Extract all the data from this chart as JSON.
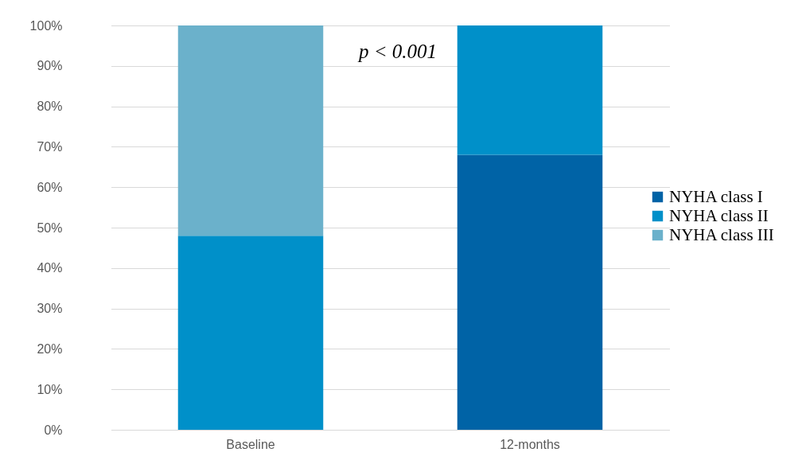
{
  "chart_data": {
    "type": "bar",
    "stacked": true,
    "categories": [
      "Baseline",
      "12-months"
    ],
    "series": [
      {
        "name": "NYHA class I",
        "color": "#0063a6",
        "values": [
          0,
          68
        ]
      },
      {
        "name": "NYHA class II",
        "color": "#0090c9",
        "values": [
          48,
          32
        ]
      },
      {
        "name": "NYHA class III",
        "color": "#6bb1cb",
        "values": [
          52,
          0
        ]
      }
    ],
    "ylim": [
      0,
      100
    ],
    "yticks": [
      {
        "value": 0,
        "label": "0%"
      },
      {
        "value": 10,
        "label": "10%"
      },
      {
        "value": 20,
        "label": "20%"
      },
      {
        "value": 30,
        "label": "30%"
      },
      {
        "value": 40,
        "label": "40%"
      },
      {
        "value": 50,
        "label": "50%"
      },
      {
        "value": 60,
        "label": "60%"
      },
      {
        "value": 70,
        "label": "70%"
      },
      {
        "value": 80,
        "label": "80%"
      },
      {
        "value": 90,
        "label": "90%"
      },
      {
        "value": 100,
        "label": "100%"
      }
    ],
    "grid": "y",
    "legend": "right",
    "annotations": [
      "p < 0.001"
    ]
  }
}
